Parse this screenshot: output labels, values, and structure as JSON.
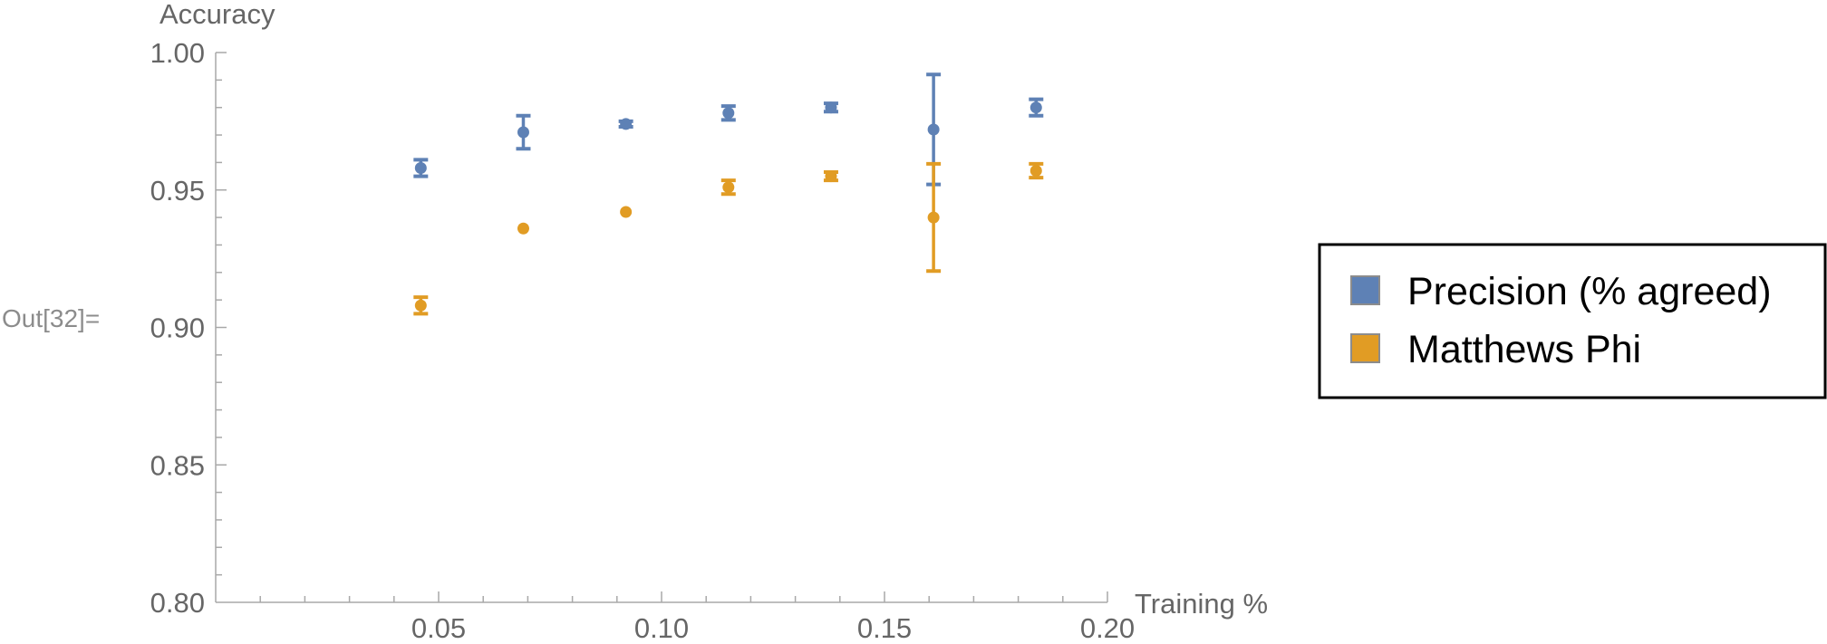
{
  "cell_label": "Out[32]=",
  "chart_data": {
    "type": "scatter",
    "title": "",
    "xlabel": "Training %",
    "ylabel": "Accuracy",
    "xlim": [
      0.0,
      0.2
    ],
    "ylim": [
      0.8,
      1.0
    ],
    "x_ticks": [
      {
        "value": 0.05,
        "label": "0.05"
      },
      {
        "value": 0.1,
        "label": "0.10"
      },
      {
        "value": 0.15,
        "label": "0.15"
      },
      {
        "value": 0.2,
        "label": "0.20"
      }
    ],
    "y_ticks": [
      {
        "value": 0.8,
        "label": "0.80"
      },
      {
        "value": 0.85,
        "label": "0.85"
      },
      {
        "value": 0.9,
        "label": "0.90"
      },
      {
        "value": 0.95,
        "label": "0.95"
      },
      {
        "value": 1.0,
        "label": "1.00"
      }
    ],
    "grid": false,
    "legend_placement": "right",
    "series": [
      {
        "name": "Precision (% agreed)",
        "color": "#5e81b5",
        "points": [
          {
            "x": 0.046,
            "y": 0.958,
            "err": 0.003
          },
          {
            "x": 0.069,
            "y": 0.971,
            "err": 0.006
          },
          {
            "x": 0.092,
            "y": 0.974,
            "err": 0.001
          },
          {
            "x": 0.115,
            "y": 0.978,
            "err": 0.0025
          },
          {
            "x": 0.138,
            "y": 0.98,
            "err": 0.0015
          },
          {
            "x": 0.161,
            "y": 0.972,
            "err": 0.02
          },
          {
            "x": 0.184,
            "y": 0.98,
            "err": 0.003
          }
        ]
      },
      {
        "name": "Matthews Phi",
        "color": "#e19c24",
        "points": [
          {
            "x": 0.046,
            "y": 0.908,
            "err": 0.003
          },
          {
            "x": 0.069,
            "y": 0.936,
            "err": 0
          },
          {
            "x": 0.092,
            "y": 0.942,
            "err": 0
          },
          {
            "x": 0.115,
            "y": 0.951,
            "err": 0.0025
          },
          {
            "x": 0.138,
            "y": 0.955,
            "err": 0.0015
          },
          {
            "x": 0.161,
            "y": 0.94,
            "err": 0.0195
          },
          {
            "x": 0.184,
            "y": 0.957,
            "err": 0.0025
          }
        ]
      }
    ]
  }
}
